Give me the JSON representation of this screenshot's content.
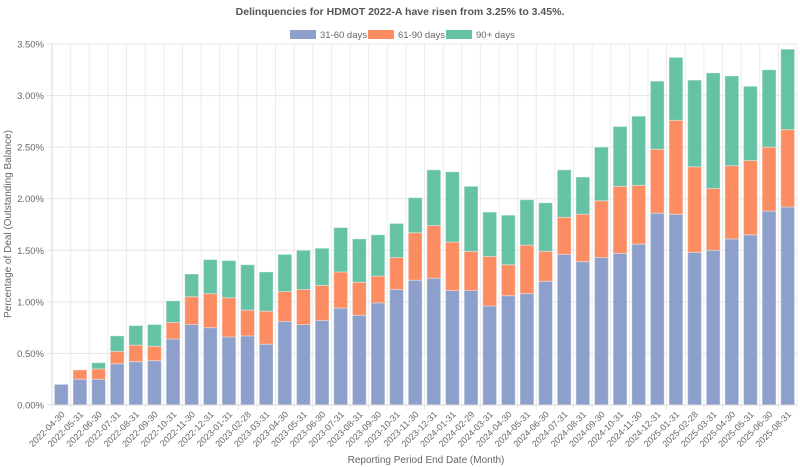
{
  "chart_data": {
    "type": "bar",
    "stacked": true,
    "title": "Delinquencies for HDMOT 2022-A have risen from 3.25% to 3.45%.",
    "xlabel": "Reporting Period End Date (Month)",
    "ylabel": "Percentage of Deal (Outstanding Balance)",
    "ylim": [
      0,
      3.5
    ],
    "yticks": [
      0,
      0.5,
      1.0,
      1.5,
      2.0,
      2.5,
      3.0,
      3.5
    ],
    "ytick_labels": [
      "0.00%",
      "0.50%",
      "1.00%",
      "1.50%",
      "2.00%",
      "2.50%",
      "3.00%",
      "3.50%"
    ],
    "grid": true,
    "legend_position": "top-center",
    "categories": [
      "2022-04-30",
      "2022-05-31",
      "2022-06-30",
      "2022-07-31",
      "2022-08-31",
      "2022-09-30",
      "2022-10-31",
      "2022-11-30",
      "2022-12-31",
      "2023-01-31",
      "2023-02-28",
      "2023-03-31",
      "2023-04-30",
      "2023-05-31",
      "2023-06-30",
      "2023-07-31",
      "2023-08-31",
      "2023-09-30",
      "2023-10-31",
      "2023-11-30",
      "2023-12-31",
      "2024-01-31",
      "2024-02-29",
      "2024-03-31",
      "2024-04-30",
      "2024-05-31",
      "2024-06-30",
      "2024-07-31",
      "2024-08-31",
      "2024-09-30",
      "2024-10-31",
      "2024-11-30",
      "2024-12-31",
      "2025-01-31",
      "2025-02-28",
      "2025-03-31",
      "2025-04-30",
      "2025-05-31",
      "2025-06-30",
      "2025-08-31"
    ],
    "series": [
      {
        "name": "31-60 days",
        "color": "#8da0cb",
        "values": [
          0.2,
          0.25,
          0.25,
          0.4,
          0.42,
          0.43,
          0.64,
          0.78,
          0.75,
          0.66,
          0.67,
          0.59,
          0.81,
          0.78,
          0.82,
          0.94,
          0.87,
          0.99,
          1.12,
          1.21,
          1.23,
          1.11,
          1.11,
          0.96,
          1.06,
          1.08,
          1.2,
          1.46,
          1.39,
          1.43,
          1.47,
          1.56,
          1.86,
          1.85,
          1.48,
          1.5,
          1.61,
          1.65,
          1.88,
          1.92
        ]
      },
      {
        "name": "61-90 days",
        "color": "#fc8d62",
        "values": [
          0.0,
          0.09,
          0.1,
          0.12,
          0.16,
          0.14,
          0.16,
          0.27,
          0.33,
          0.38,
          0.25,
          0.32,
          0.29,
          0.34,
          0.34,
          0.35,
          0.32,
          0.26,
          0.31,
          0.46,
          0.51,
          0.47,
          0.38,
          0.48,
          0.3,
          0.47,
          0.29,
          0.36,
          0.46,
          0.55,
          0.65,
          0.57,
          0.62,
          0.91,
          0.83,
          0.6,
          0.71,
          0.72,
          0.62,
          0.75
        ]
      },
      {
        "name": "90+ days",
        "color": "#66c2a5",
        "values": [
          0.0,
          0.0,
          0.06,
          0.15,
          0.19,
          0.21,
          0.21,
          0.22,
          0.33,
          0.36,
          0.44,
          0.38,
          0.36,
          0.38,
          0.36,
          0.43,
          0.42,
          0.4,
          0.33,
          0.34,
          0.54,
          0.68,
          0.63,
          0.43,
          0.48,
          0.44,
          0.47,
          0.46,
          0.36,
          0.52,
          0.58,
          0.67,
          0.66,
          0.61,
          0.84,
          1.12,
          0.87,
          0.72,
          0.75,
          0.78
        ]
      }
    ]
  }
}
